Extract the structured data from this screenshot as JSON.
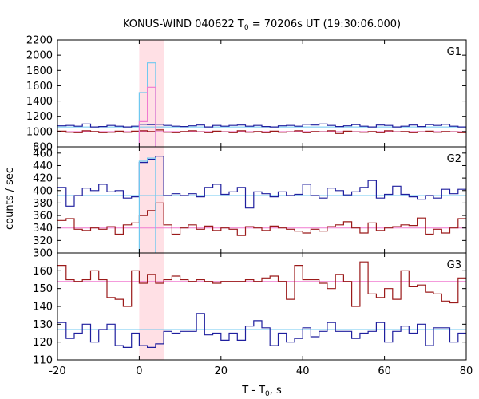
{
  "chart_data": {
    "type": "line",
    "title": "KONUS-WIND 040622 T",
    "title_sub": "0",
    "title_rest": " = 70206s UT (19:30:06.000)",
    "xlabel": "T - T",
    "xlabel_sub": "0",
    "xlabel_rest": ", s",
    "ylabel": "counts / sec",
    "xlim": [
      -20,
      80
    ],
    "x_ticks": [
      -20,
      0,
      20,
      40,
      60,
      80
    ],
    "highlight_region": [
      0,
      6
    ],
    "colors": {
      "dark_blue": "#1f1f9e",
      "dark_red": "#9b1a1a",
      "light_blue": "#6fc8f0",
      "pink": "#f07ad0",
      "highlight": "#ffd6dc"
    },
    "bin_edges": [
      -20,
      -17.9,
      -15.9,
      -13.9,
      -11.9,
      -9.9,
      -7.9,
      -5.9,
      -3.9,
      -1.9,
      0,
      2,
      4,
      6,
      8,
      10,
      12,
      14,
      16,
      18,
      20,
      22,
      24,
      26,
      28,
      30,
      32,
      34,
      36,
      38,
      40,
      42,
      44,
      46,
      48,
      50,
      52,
      54,
      56,
      58,
      60,
      62,
      64,
      66,
      68,
      70,
      72,
      74,
      76,
      78,
      80
    ],
    "panels": [
      {
        "name": "G1",
        "ylim": [
          800,
          2200
        ],
        "y_ticks": [
          800,
          1000,
          1200,
          1400,
          1600,
          1800,
          2000,
          2200
        ],
        "background_levels": {
          "blue": 1060,
          "red": 1000
        },
        "series": [
          {
            "color": "dark_blue",
            "values": [
              1075,
              1080,
              1070,
              1100,
              1060,
              1065,
              1080,
              1070,
              1060,
              1070,
              1095,
              1090,
              1095,
              1080,
              1070,
              1065,
              1075,
              1085,
              1060,
              1080,
              1070,
              1080,
              1085,
              1070,
              1080,
              1065,
              1060,
              1075,
              1080,
              1070,
              1095,
              1085,
              1100,
              1080,
              1065,
              1075,
              1090,
              1070,
              1060,
              1085,
              1080,
              1060,
              1070,
              1085,
              1065,
              1090,
              1080,
              1095,
              1070,
              1060
            ]
          },
          {
            "color": "dark_red",
            "values": [
              1005,
              990,
              985,
              1010,
              1000,
              985,
              990,
              1005,
              990,
              1005,
              1010,
              1000,
              1020,
              990,
              985,
              1000,
              1010,
              995,
              985,
              1005,
              995,
              985,
              1010,
              990,
              1000,
              985,
              1005,
              990,
              995,
              1010,
              985,
              1000,
              995,
              1010,
              975,
              1005,
              995,
              990,
              1000,
              985,
              1010,
              995,
              1000,
              985,
              995,
              1005,
              990,
              1000,
              995,
              985
            ]
          },
          {
            "color": "light_blue",
            "values": [
              null,
              null,
              null,
              null,
              null,
              null,
              null,
              null,
              null,
              null,
              1510,
              1900,
              null,
              null,
              null,
              null,
              null,
              null,
              null,
              null,
              null,
              null,
              null,
              null,
              null,
              null,
              null,
              null,
              null,
              null,
              null,
              null,
              null,
              null,
              null,
              null,
              null,
              null,
              null,
              null,
              null,
              null,
              null,
              null,
              null,
              null,
              null,
              null,
              null,
              null
            ]
          },
          {
            "color": "pink",
            "values": [
              null,
              null,
              null,
              null,
              null,
              null,
              null,
              null,
              null,
              null,
              1130,
              1580,
              null,
              null,
              null,
              null,
              null,
              null,
              null,
              null,
              null,
              null,
              null,
              null,
              null,
              null,
              null,
              null,
              null,
              null,
              null,
              null,
              null,
              null,
              null,
              null,
              null,
              null,
              null,
              null,
              null,
              null,
              null,
              null,
              null,
              null,
              null,
              null,
              null,
              null
            ]
          }
        ]
      },
      {
        "name": "G2",
        "ylim": [
          300,
          470
        ],
        "y_ticks": [
          300,
          320,
          340,
          360,
          380,
          400,
          420,
          440,
          460
        ],
        "background_levels": {
          "blue": 392,
          "red": 340
        },
        "series": [
          {
            "color": "dark_blue",
            "values": [
              405,
              375,
              392,
              404,
              400,
              410,
              398,
              400,
              388,
              390,
              445,
              450,
              455,
              392,
              395,
              392,
              395,
              390,
              405,
              410,
              394,
              398,
              405,
              372,
              398,
              395,
              390,
              398,
              392,
              394,
              410,
              392,
              388,
              404,
              400,
              393,
              398,
              405,
              416,
              388,
              394,
              407,
              394,
              390,
              386,
              392,
              388,
              402,
              395,
              402
            ]
          },
          {
            "color": "dark_red",
            "values": [
              352,
              355,
              338,
              336,
              340,
              338,
              342,
              330,
              345,
              348,
              360,
              368,
              380,
              345,
              330,
              340,
              345,
              338,
              343,
              336,
              340,
              338,
              328,
              342,
              340,
              336,
              343,
              340,
              338,
              335,
              332,
              338,
              335,
              342,
              345,
              350,
              340,
              332,
              348,
              336,
              340,
              342,
              345,
              344,
              356,
              330,
              338,
              332,
              340,
              355
            ]
          },
          {
            "color": "light_blue",
            "values": [
              null,
              null,
              null,
              null,
              null,
              null,
              null,
              null,
              null,
              null,
              447,
              452,
              null,
              null,
              null,
              null,
              null,
              null,
              null,
              null,
              null,
              null,
              null,
              null,
              null,
              null,
              null,
              null,
              null,
              null,
              null,
              null,
              null,
              null,
              null,
              null,
              null,
              null,
              null,
              null,
              null,
              null,
              null,
              null,
              null,
              null,
              null,
              null,
              null,
              null
            ]
          }
        ]
      },
      {
        "name": "G3",
        "ylim": [
          110,
          170
        ],
        "y_ticks": [
          110,
          120,
          130,
          140,
          150,
          160
        ],
        "background_levels": {
          "blue": 127,
          "red": 154
        },
        "series": [
          {
            "color": "dark_red",
            "values": [
              163,
              155,
              154,
              155,
              160,
              155,
              145,
              144,
              140,
              160,
              153,
              158,
              153,
              155,
              157,
              155,
              154,
              155,
              154,
              153,
              154,
              154,
              154,
              155,
              154,
              156,
              157,
              154,
              144,
              163,
              155,
              155,
              153,
              150,
              158,
              154,
              140,
              165,
              147,
              145,
              150,
              144,
              160,
              151,
              152,
              148,
              147,
              143,
              142,
              156
            ]
          },
          {
            "color": "dark_blue",
            "values": [
              131,
              122,
              125,
              130,
              120,
              127,
              130,
              118,
              117,
              125,
              118,
              117,
              119,
              126,
              125,
              126,
              126,
              136,
              124,
              125,
              121,
              125,
              121,
              129,
              132,
              128,
              118,
              125,
              120,
              122,
              128,
              123,
              126,
              131,
              126,
              126,
              122,
              125,
              126,
              131,
              120,
              126,
              129,
              125,
              130,
              118,
              128,
              128,
              120,
              125
            ]
          }
        ]
      }
    ]
  }
}
